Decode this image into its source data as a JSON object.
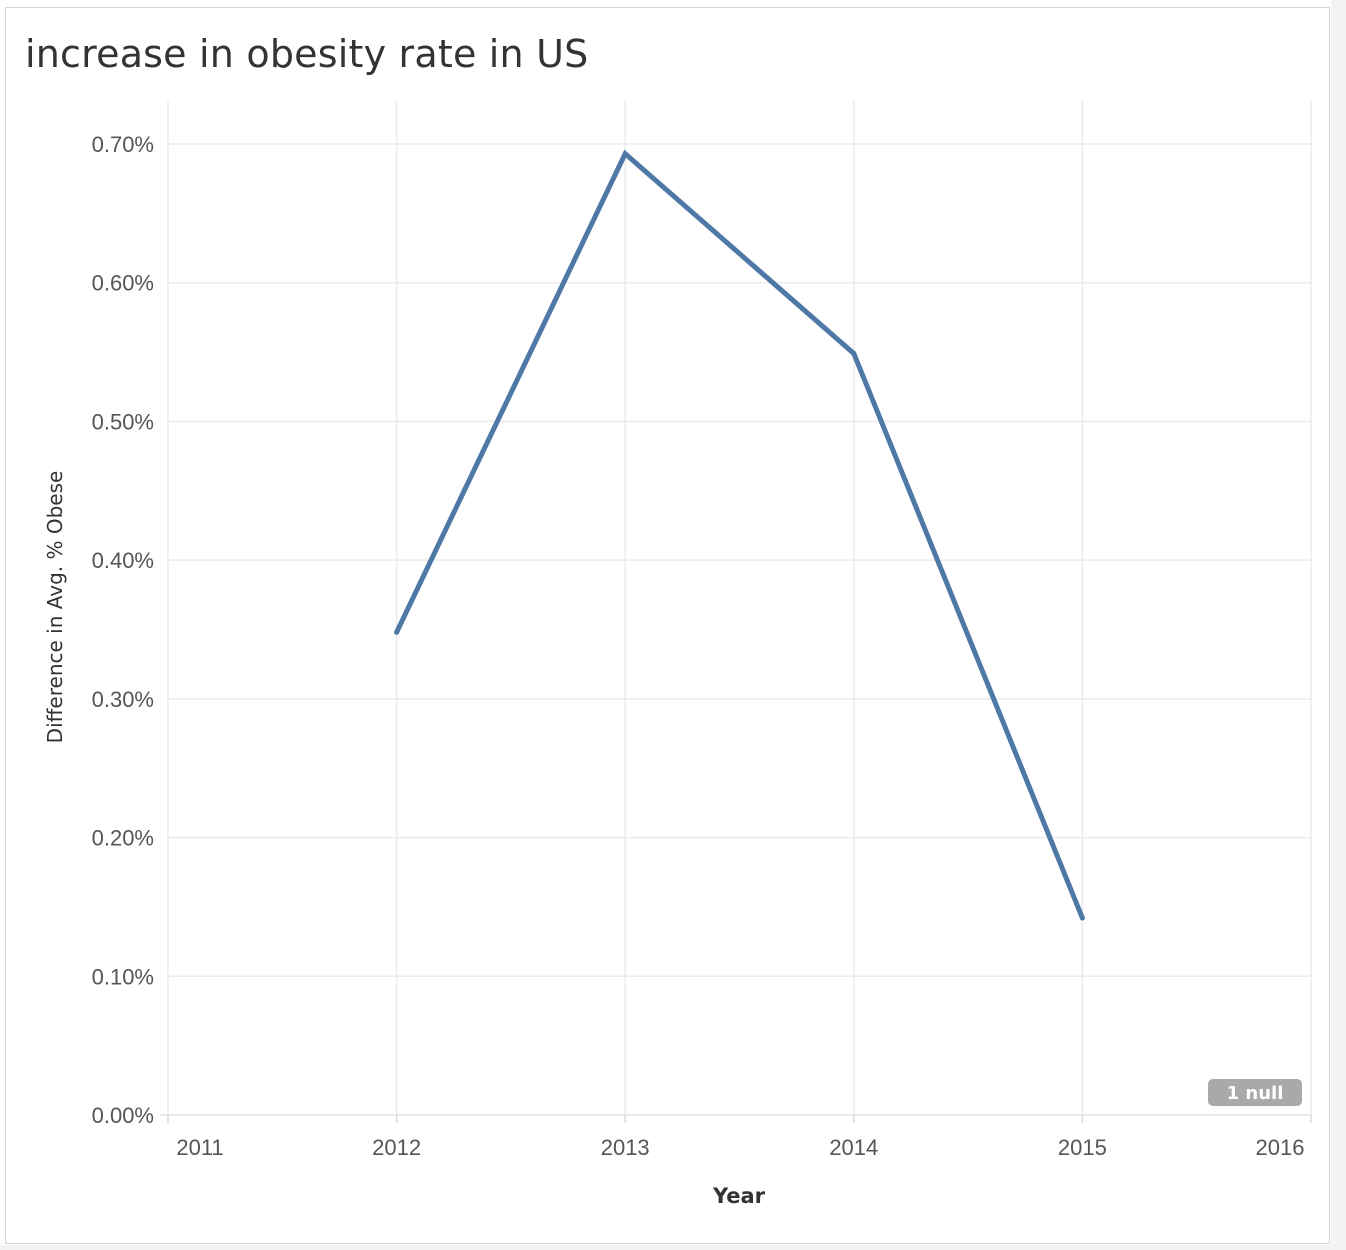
{
  "chart_data": {
    "type": "line",
    "title": "increase in obesity rate in US",
    "xlabel": "Year",
    "ylabel": "Difference in Avg. % Obese",
    "x_ticks": [
      "2011",
      "2012",
      "2013",
      "2014",
      "2015",
      "2016"
    ],
    "y_ticks": [
      "0.00%",
      "0.10%",
      "0.20%",
      "0.30%",
      "0.40%",
      "0.50%",
      "0.60%",
      "0.70%"
    ],
    "xlim": [
      2011,
      2016
    ],
    "ylim": [
      0,
      0.7
    ],
    "grid": true,
    "series": [
      {
        "x": [
          2012,
          2013,
          2014,
          2015
        ],
        "values": [
          0.348,
          0.693,
          0.549,
          0.142
        ],
        "color": "#4e79a7"
      }
    ],
    "null_badge": "1 null",
    "null_badge_color": "#a9a9a9"
  }
}
